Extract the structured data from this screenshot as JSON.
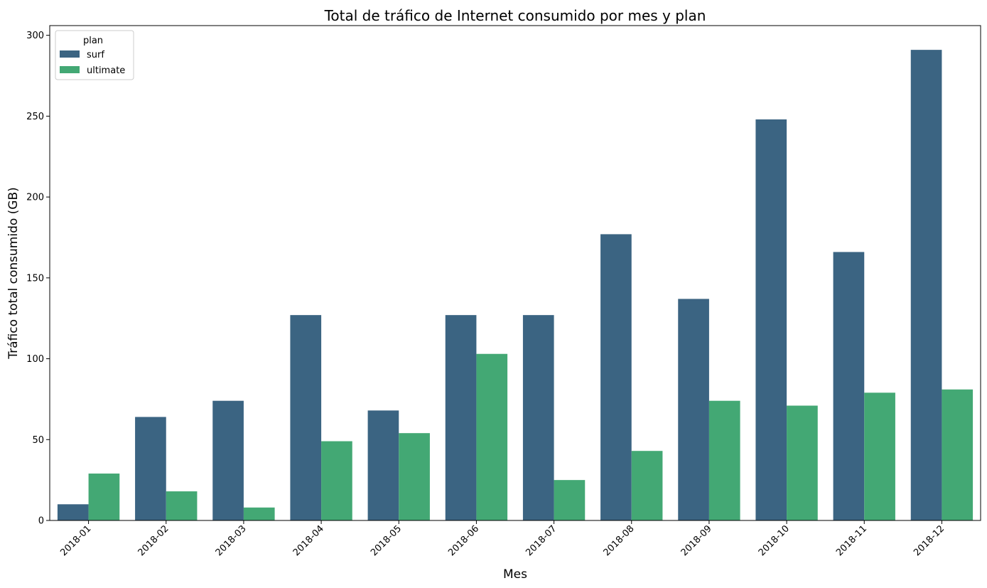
{
  "chart_data": {
    "type": "bar",
    "title": "Total de tráfico de Internet consumido por mes y plan",
    "xlabel": "Mes",
    "ylabel": "Tráfico total consumido (GB)",
    "categories": [
      "2018-01",
      "2018-02",
      "2018-03",
      "2018-04",
      "2018-05",
      "2018-06",
      "2018-07",
      "2018-08",
      "2018-09",
      "2018-10",
      "2018-11",
      "2018-12"
    ],
    "series": [
      {
        "name": "surf",
        "color": "#3b6482",
        "values": [
          10,
          64,
          74,
          127,
          68,
          127,
          127,
          177,
          137,
          248,
          166,
          291
        ]
      },
      {
        "name": "ultimate",
        "color": "#43a874",
        "values": [
          29,
          18,
          8,
          49,
          54,
          103,
          25,
          43,
          74,
          71,
          79,
          81
        ]
      }
    ],
    "ylim": [
      0,
      306
    ],
    "yticks": [
      0,
      50,
      100,
      150,
      200,
      250,
      300
    ],
    "legend": {
      "title": "plan",
      "placement": "top-left"
    },
    "grid": false
  }
}
